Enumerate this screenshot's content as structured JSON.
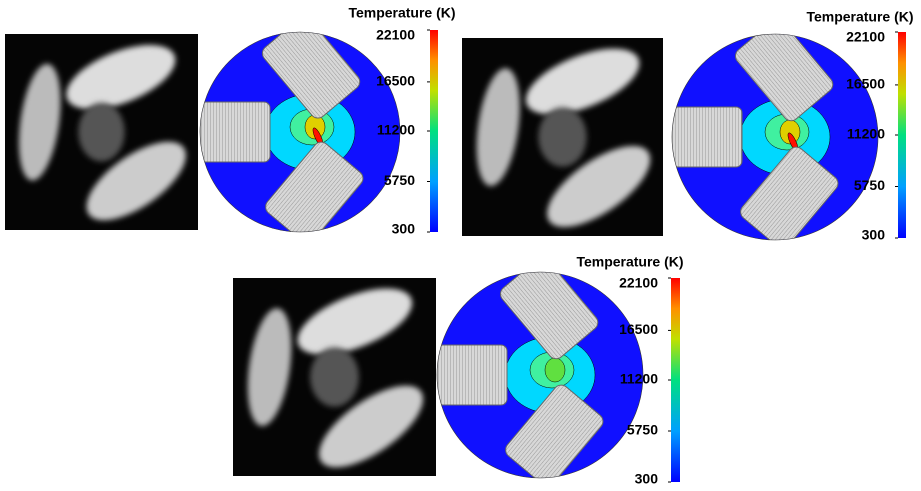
{
  "panels": [
    {
      "colorbar": {
        "title": "Temperature (K)",
        "range": [
          300,
          22100
        ],
        "ticks": [
          300,
          5750,
          11200,
          16500,
          22100
        ]
      }
    },
    {
      "colorbar": {
        "title": "Temperature (K)",
        "range": [
          300,
          22100
        ],
        "ticks": [
          300,
          5750,
          11200,
          16500,
          22100
        ]
      }
    },
    {
      "colorbar": {
        "title": "Temperature (K)",
        "range": [
          300,
          22100
        ],
        "ticks": [
          300,
          5750,
          11200,
          16500,
          22100
        ]
      }
    }
  ]
}
